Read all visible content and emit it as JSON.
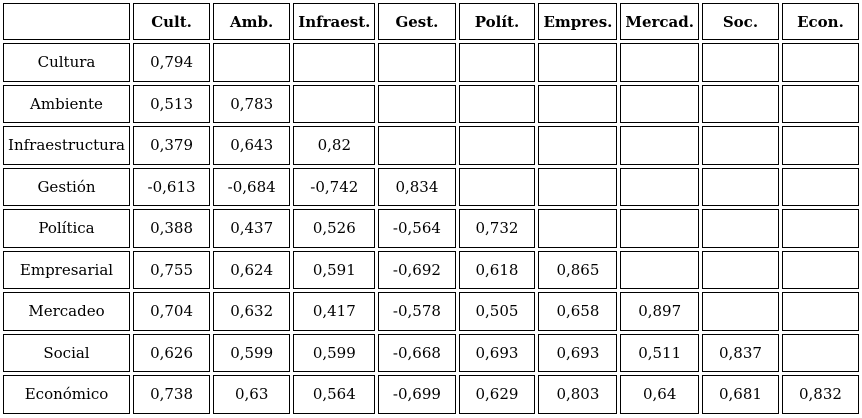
{
  "table": {
    "corner_label": "",
    "column_headers": [
      "Cult.",
      "Amb.",
      "Infraest.",
      "Gest.",
      "Polít.",
      "Empres.",
      "Mercad.",
      "Soc.",
      "Econ."
    ],
    "rows": [
      {
        "label": "Cultura",
        "values": [
          "0,794",
          "",
          "",
          "",
          "",
          "",
          "",
          "",
          ""
        ]
      },
      {
        "label": "Ambiente",
        "values": [
          "0,513",
          "0,783",
          "",
          "",
          "",
          "",
          "",
          "",
          ""
        ]
      },
      {
        "label": "Infraestructura",
        "values": [
          "0,379",
          "0,643",
          "0,82",
          "",
          "",
          "",
          "",
          "",
          ""
        ]
      },
      {
        "label": "Gestión",
        "values": [
          "-0,613",
          "-0,684",
          "-0,742",
          "0,834",
          "",
          "",
          "",
          "",
          ""
        ]
      },
      {
        "label": "Política",
        "values": [
          "0,388",
          "0,437",
          "0,526",
          "-0,564",
          "0,732",
          "",
          "",
          "",
          ""
        ]
      },
      {
        "label": "Empresarial",
        "values": [
          "0,755",
          "0,624",
          "0,591",
          "-0,692",
          "0,618",
          "0,865",
          "",
          "",
          ""
        ]
      },
      {
        "label": "Mercadeo",
        "values": [
          "0,704",
          "0,632",
          "0,417",
          "-0,578",
          "0,505",
          "0,658",
          "0,897",
          "",
          ""
        ]
      },
      {
        "label": "Social",
        "values": [
          "0,626",
          "0,599",
          "0,599",
          "-0,668",
          "0,693",
          "0,693",
          "0,511",
          "0,837",
          ""
        ]
      },
      {
        "label": "Económico",
        "values": [
          "0,738",
          "0,63",
          "0,564",
          "-0,699",
          "0,629",
          "0,803",
          "0,64",
          "0,681",
          "0,832"
        ]
      }
    ]
  },
  "chart_data": {
    "type": "table",
    "title": "",
    "column_labels": [
      "Cult.",
      "Amb.",
      "Infraest.",
      "Gest.",
      "Polít.",
      "Empres.",
      "Mercad.",
      "Soc.",
      "Econ."
    ],
    "row_labels": [
      "Cultura",
      "Ambiente",
      "Infraestructura",
      "Gestión",
      "Política",
      "Empresarial",
      "Mercadeo",
      "Social",
      "Económico"
    ],
    "matrix": [
      [
        0.794,
        null,
        null,
        null,
        null,
        null,
        null,
        null,
        null
      ],
      [
        0.513,
        0.783,
        null,
        null,
        null,
        null,
        null,
        null,
        null
      ],
      [
        0.379,
        0.643,
        0.82,
        null,
        null,
        null,
        null,
        null,
        null
      ],
      [
        -0.613,
        -0.684,
        -0.742,
        0.834,
        null,
        null,
        null,
        null,
        null
      ],
      [
        0.388,
        0.437,
        0.526,
        -0.564,
        0.732,
        null,
        null,
        null,
        null
      ],
      [
        0.755,
        0.624,
        0.591,
        -0.692,
        0.618,
        0.865,
        null,
        null,
        null
      ],
      [
        0.704,
        0.632,
        0.417,
        -0.578,
        0.505,
        0.658,
        0.897,
        null,
        null
      ],
      [
        0.626,
        0.599,
        0.599,
        -0.668,
        0.693,
        0.693,
        0.511,
        0.837,
        null
      ],
      [
        0.738,
        0.63,
        0.564,
        -0.699,
        0.629,
        0.803,
        0.64,
        0.681,
        0.832
      ]
    ],
    "notes": "Lower-triangular correlation matrix; decimal comma formatting; diagonal holds values shown in screenshot",
    "layout": "matrix table with bordered cells, grid on"
  },
  "colors": {
    "border": "#000000",
    "background": "#ffffff",
    "text": "#000000"
  }
}
